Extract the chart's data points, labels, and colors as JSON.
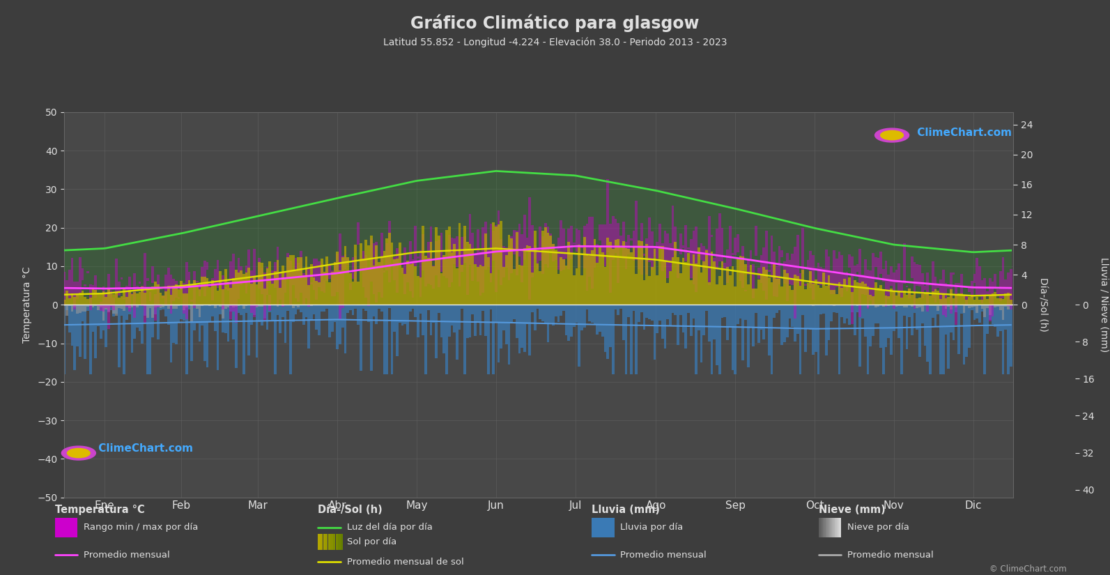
{
  "title": "Gráfico Climático para glasgow",
  "subtitle": "Latitud 55.852 - Longitud -4.224 - Elevación 38.0 - Periodo 2013 - 2023",
  "bg_color": "#3d3d3d",
  "plot_bg_color": "#484848",
  "grid_color": "#606060",
  "text_color": "#e0e0e0",
  "months": [
    "Ene",
    "Feb",
    "Mar",
    "Abr",
    "May",
    "Jun",
    "Jul",
    "Ago",
    "Sep",
    "Oct",
    "Nov",
    "Dic"
  ],
  "temp_ylim": [
    -50,
    50
  ],
  "days_per_month": [
    31,
    28,
    31,
    30,
    31,
    30,
    31,
    31,
    30,
    31,
    30,
    31
  ],
  "temp_avg_monthly": [
    4.2,
    4.5,
    6.2,
    8.2,
    11.2,
    13.8,
    15.2,
    15.0,
    12.2,
    9.2,
    6.2,
    4.5
  ],
  "temp_max_daily_avg": [
    6.8,
    7.2,
    9.2,
    11.8,
    15.2,
    17.8,
    19.2,
    18.8,
    15.8,
    11.8,
    8.8,
    7.0
  ],
  "temp_min_daily_avg": [
    1.2,
    1.5,
    2.8,
    4.2,
    6.8,
    9.2,
    10.8,
    10.8,
    8.2,
    5.2,
    3.2,
    1.8
  ],
  "temp_max_abs": [
    13.0,
    14.5,
    17.5,
    21.5,
    25.5,
    29.5,
    31.5,
    30.5,
    26.5,
    20.5,
    15.5,
    12.5
  ],
  "temp_min_abs": [
    -9.0,
    -8.0,
    -6.0,
    -3.0,
    0.5,
    3.5,
    5.5,
    5.5,
    1.5,
    -1.5,
    -5.0,
    -8.0
  ],
  "sun_hours_monthly": [
    1.5,
    2.5,
    3.8,
    5.5,
    7.0,
    7.5,
    6.8,
    6.0,
    4.5,
    3.0,
    1.8,
    1.2
  ],
  "daylight_hours_monthly": [
    7.5,
    9.5,
    11.8,
    14.2,
    16.5,
    17.8,
    17.2,
    15.2,
    12.8,
    10.2,
    8.0,
    7.0
  ],
  "rain_daily_mm_monthly": [
    4.2,
    3.8,
    3.5,
    3.2,
    3.5,
    3.8,
    4.2,
    4.5,
    4.8,
    5.2,
    5.0,
    4.5
  ],
  "snow_daily_mm_monthly": [
    0.6,
    0.5,
    0.2,
    0.02,
    0.0,
    0.0,
    0.0,
    0.0,
    0.0,
    0.02,
    0.2,
    0.5
  ],
  "sun_scale": 1.95,
  "rain_scale": -1.2,
  "snow_scale": -1.2
}
